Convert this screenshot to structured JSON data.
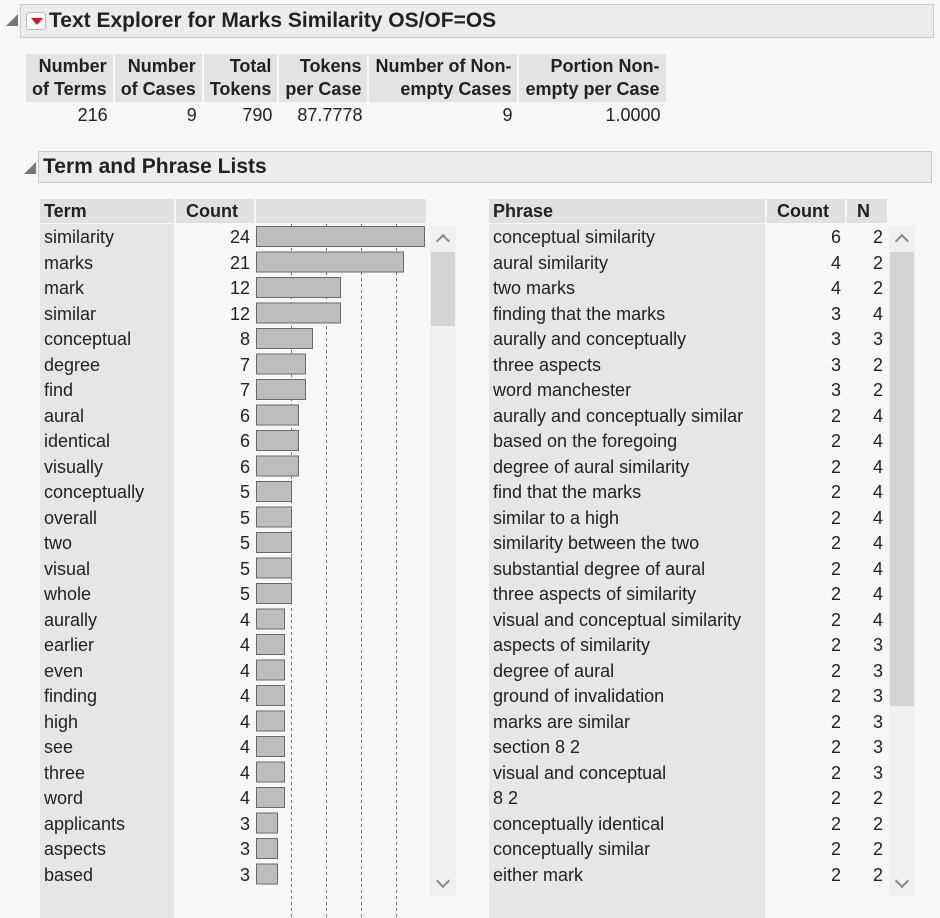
{
  "text_explorer": {
    "title": "Text Explorer for Marks Similarity OS/OF=OS",
    "summary": {
      "headers": [
        [
          "Number",
          "of Terms"
        ],
        [
          "Number",
          "of Cases"
        ],
        [
          "Total",
          "Tokens"
        ],
        [
          "Tokens",
          "per Case"
        ],
        [
          "Number of Non-",
          "empty Cases"
        ],
        [
          "Portion Non-",
          "empty per Case"
        ]
      ],
      "values": [
        "216",
        "9",
        "790",
        "87.7778",
        "9",
        "1.0000"
      ]
    }
  },
  "term_phrase_lists": {
    "title": "Term and Phrase Lists",
    "term_table": {
      "headers": [
        "Term",
        "Count"
      ],
      "rows": [
        {
          "term": "similarity",
          "count": 24
        },
        {
          "term": "marks",
          "count": 21
        },
        {
          "term": "mark",
          "count": 12
        },
        {
          "term": "similar",
          "count": 12
        },
        {
          "term": "conceptual",
          "count": 8
        },
        {
          "term": "degree",
          "count": 7
        },
        {
          "term": "find",
          "count": 7
        },
        {
          "term": "aural",
          "count": 6
        },
        {
          "term": "identical",
          "count": 6
        },
        {
          "term": "visually",
          "count": 6
        },
        {
          "term": "conceptually",
          "count": 5
        },
        {
          "term": "overall",
          "count": 5
        },
        {
          "term": "two",
          "count": 5
        },
        {
          "term": "visual",
          "count": 5
        },
        {
          "term": "whole",
          "count": 5
        },
        {
          "term": "aurally",
          "count": 4
        },
        {
          "term": "earlier",
          "count": 4
        },
        {
          "term": "even",
          "count": 4
        },
        {
          "term": "finding",
          "count": 4
        },
        {
          "term": "high",
          "count": 4
        },
        {
          "term": "see",
          "count": 4
        },
        {
          "term": "three",
          "count": 4
        },
        {
          "term": "word",
          "count": 4
        },
        {
          "term": "applicants",
          "count": 3
        },
        {
          "term": "aspects",
          "count": 3
        },
        {
          "term": "based",
          "count": 3
        }
      ]
    },
    "phrase_table": {
      "headers": [
        "Phrase",
        "Count",
        "N"
      ],
      "rows": [
        {
          "phrase": "conceptual similarity",
          "count": 6,
          "n": 2
        },
        {
          "phrase": "aural similarity",
          "count": 4,
          "n": 2
        },
        {
          "phrase": "two marks",
          "count": 4,
          "n": 2
        },
        {
          "phrase": "finding that the marks",
          "count": 3,
          "n": 4
        },
        {
          "phrase": "aurally and conceptually",
          "count": 3,
          "n": 3
        },
        {
          "phrase": "three aspects",
          "count": 3,
          "n": 2
        },
        {
          "phrase": "word manchester",
          "count": 3,
          "n": 2
        },
        {
          "phrase": "aurally and conceptually similar",
          "count": 2,
          "n": 4
        },
        {
          "phrase": "based on the foregoing",
          "count": 2,
          "n": 4
        },
        {
          "phrase": "degree of aural similarity",
          "count": 2,
          "n": 4
        },
        {
          "phrase": "find that the marks",
          "count": 2,
          "n": 4
        },
        {
          "phrase": "similar to a high",
          "count": 2,
          "n": 4
        },
        {
          "phrase": "similarity between the two",
          "count": 2,
          "n": 4
        },
        {
          "phrase": "substantial degree of aural",
          "count": 2,
          "n": 4
        },
        {
          "phrase": "three aspects of similarity",
          "count": 2,
          "n": 4
        },
        {
          "phrase": "visual and conceptual similarity",
          "count": 2,
          "n": 4
        },
        {
          "phrase": "aspects of similarity",
          "count": 2,
          "n": 3
        },
        {
          "phrase": "degree of aural",
          "count": 2,
          "n": 3
        },
        {
          "phrase": "ground of invalidation",
          "count": 2,
          "n": 3
        },
        {
          "phrase": "marks are similar",
          "count": 2,
          "n": 3
        },
        {
          "phrase": "section 8 2",
          "count": 2,
          "n": 3
        },
        {
          "phrase": "visual and conceptual",
          "count": 2,
          "n": 3
        },
        {
          "phrase": "8 2",
          "count": 2,
          "n": 2
        },
        {
          "phrase": "conceptually identical",
          "count": 2,
          "n": 2
        },
        {
          "phrase": "conceptually similar",
          "count": 2,
          "n": 2
        },
        {
          "phrase": "either mark",
          "count": 2,
          "n": 2
        }
      ]
    }
  },
  "chart_data": {
    "type": "bar",
    "categories": [
      "similarity",
      "marks",
      "mark",
      "similar",
      "conceptual",
      "degree",
      "find",
      "aural",
      "identical",
      "visually",
      "conceptually",
      "overall",
      "two",
      "visual",
      "whole",
      "aurally",
      "earlier",
      "even",
      "finding",
      "high",
      "see",
      "three",
      "word",
      "applicants",
      "aspects",
      "based"
    ],
    "values": [
      24,
      21,
      12,
      12,
      8,
      7,
      7,
      6,
      6,
      6,
      5,
      5,
      5,
      5,
      5,
      4,
      4,
      4,
      4,
      4,
      4,
      4,
      4,
      3,
      3,
      3
    ],
    "xlim": [
      0,
      24
    ],
    "grid": true
  },
  "icons": {
    "disclosure": "disclosure-triangle-icon",
    "menu": "red-triangle-menu-icon",
    "scroll_up": "scroll-up-arrow-icon",
    "scroll_down": "scroll-down-arrow-icon"
  },
  "colors": {
    "bar_fill": "#bdbdbd",
    "menu_triangle": "#dd1111"
  }
}
